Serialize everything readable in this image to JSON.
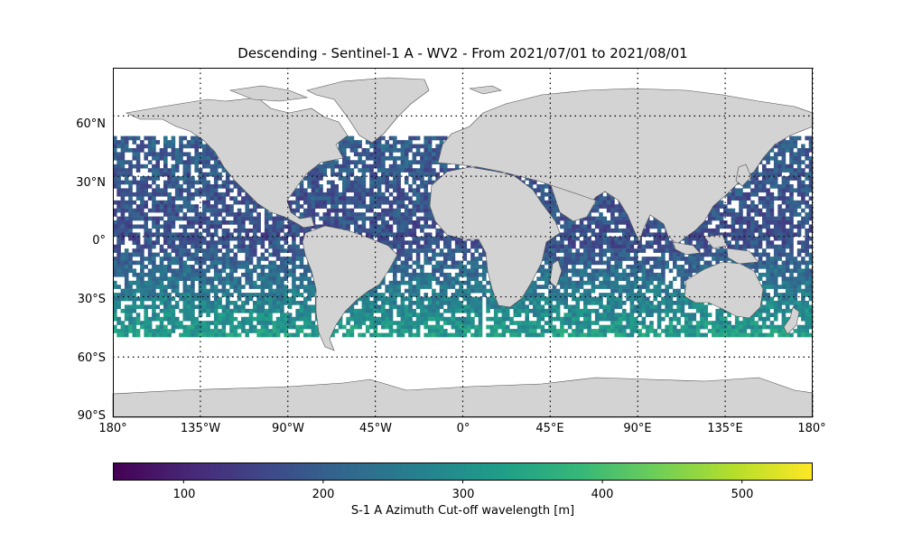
{
  "title": "Descending - Sentinel-1 A - WV2 - From 2021/07/01 to 2021/08/01",
  "lat_labels": [
    "60°N",
    "30°N",
    "0°",
    "30°S",
    "60°S",
    "90°S"
  ],
  "lon_labels": [
    "180°",
    "135°W",
    "90°W",
    "45°W",
    "0°",
    "45°E",
    "90°E",
    "135°E",
    "180°"
  ],
  "colorbar": {
    "label": "S-1 A Azimuth Cut-off wavelength [m]",
    "ticks": [
      "100",
      "200",
      "300",
      "400",
      "500"
    ],
    "range": [
      50,
      550
    ],
    "colormap": "viridis",
    "colors": [
      "#440154",
      "#482878",
      "#3e4989",
      "#31688e",
      "#26828e",
      "#1f9e89",
      "#35b779",
      "#6ece58",
      "#b5de2b",
      "#fde725"
    ]
  },
  "map": {
    "projection": "PlateCarree",
    "lon_range": [
      -180,
      180
    ],
    "lat_range": [
      -90,
      84
    ],
    "land_color": "#d3d3d3",
    "coastline_color": "#4d4d4d",
    "gridlines": "dotted",
    "data_lat_range": [
      -50,
      50
    ]
  }
}
